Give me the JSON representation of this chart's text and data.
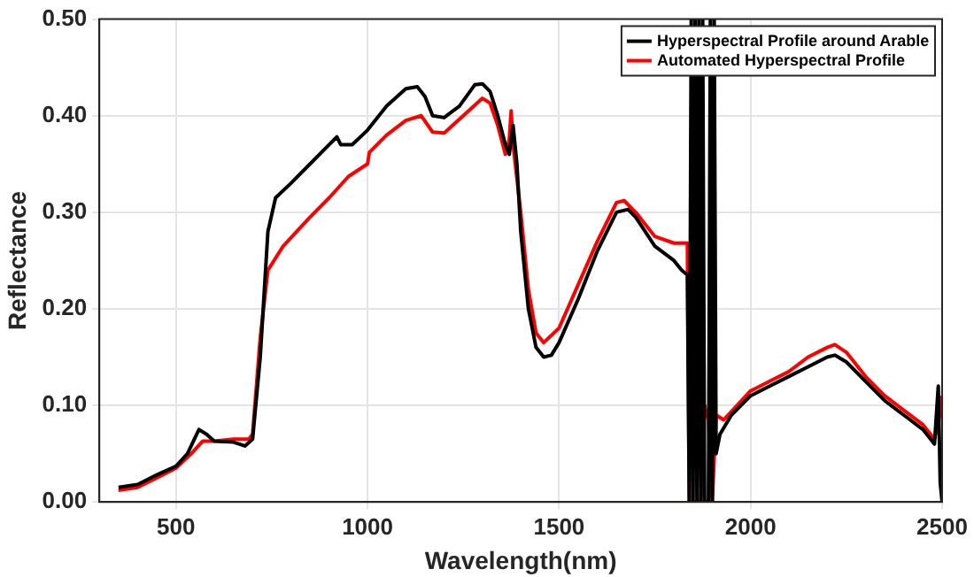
{
  "chart_data": {
    "type": "line",
    "xlabel": "Wavelength(nm)",
    "ylabel": "Reflectance",
    "xlim": [
      300,
      2500
    ],
    "xticks": [
      500,
      1000,
      1500,
      2000,
      2500
    ],
    "ylim": [
      0,
      0.5
    ],
    "yticks": [
      {
        "value": 0,
        "label": "0.00"
      },
      {
        "value": 0.1,
        "label": "0.10"
      },
      {
        "value": 0.2,
        "label": "0.20"
      },
      {
        "value": 0.3,
        "label": "0.30"
      },
      {
        "value": 0.4,
        "label": "0.40"
      },
      {
        "value": 0.5,
        "label": "0.50"
      }
    ],
    "grid": true,
    "legend": "top right",
    "marker": "none",
    "line_style": "solid",
    "series": [
      {
        "name": "Hyperspectral Profile around Arable",
        "color": "#000000",
        "x": [
          350,
          400,
          450,
          500,
          530,
          560,
          580,
          600,
          650,
          680,
          700,
          720,
          740,
          760,
          800,
          850,
          900,
          920,
          930,
          960,
          1000,
          1050,
          1100,
          1130,
          1150,
          1170,
          1200,
          1240,
          1280,
          1300,
          1320,
          1340,
          1360,
          1370,
          1380,
          1390,
          1400,
          1420,
          1440,
          1460,
          1480,
          1500,
          1550,
          1600,
          1650,
          1680,
          1700,
          1750,
          1800,
          1820,
          1835,
          1840,
          1845,
          1850,
          1855,
          1860,
          1865,
          1870,
          1875,
          1880,
          1890,
          1895,
          1900,
          1905,
          1910,
          1920,
          1950,
          2000,
          2050,
          2100,
          2150,
          2200,
          2220,
          2250,
          2300,
          2350,
          2400,
          2450,
          2480,
          2490,
          2495,
          2500
        ],
        "values": [
          0.015,
          0.018,
          0.028,
          0.037,
          0.05,
          0.075,
          0.07,
          0.063,
          0.062,
          0.058,
          0.065,
          0.15,
          0.28,
          0.315,
          0.33,
          0.35,
          0.37,
          0.378,
          0.37,
          0.37,
          0.385,
          0.41,
          0.428,
          0.43,
          0.42,
          0.4,
          0.398,
          0.41,
          0.432,
          0.433,
          0.425,
          0.4,
          0.37,
          0.36,
          0.39,
          0.35,
          0.28,
          0.2,
          0.16,
          0.15,
          0.152,
          0.165,
          0.21,
          0.26,
          0.3,
          0.303,
          0.295,
          0.265,
          0.25,
          0.24,
          0.235,
          0,
          0.5,
          0,
          0.5,
          0,
          0.5,
          0,
          0.5,
          0,
          0,
          0.5,
          0,
          0.5,
          0.05,
          0.07,
          0.09,
          0.11,
          0.12,
          0.13,
          0.14,
          0.15,
          0.152,
          0.145,
          0.125,
          0.105,
          0.09,
          0.075,
          0.06,
          0.12,
          0.02,
          0
        ]
      },
      {
        "name": "Automated Hyperspectral Profile",
        "color": "#ff0000",
        "x": [
          350,
          400,
          450,
          500,
          540,
          570,
          600,
          650,
          690,
          700,
          720,
          740,
          780,
          850,
          900,
          950,
          1000,
          1005,
          1050,
          1100,
          1140,
          1170,
          1200,
          1250,
          1300,
          1320,
          1340,
          1360,
          1370,
          1375,
          1380,
          1400,
          1420,
          1440,
          1460,
          1500,
          1550,
          1600,
          1650,
          1670,
          1700,
          1750,
          1800,
          1835,
          1840,
          1860,
          1870,
          1880,
          1890,
          1900,
          1910,
          1930,
          2000,
          2050,
          2100,
          2150,
          2200,
          2220,
          2250,
          2300,
          2350,
          2400,
          2450,
          2480,
          2490,
          2500
        ],
        "values": [
          0.012,
          0.015,
          0.025,
          0.035,
          0.05,
          0.063,
          0.063,
          0.065,
          0.065,
          0.07,
          0.17,
          0.24,
          0.265,
          0.295,
          0.315,
          0.337,
          0.35,
          0.362,
          0.38,
          0.395,
          0.4,
          0.383,
          0.382,
          0.4,
          0.418,
          0.413,
          0.39,
          0.36,
          0.375,
          0.405,
          0.37,
          0.3,
          0.22,
          0.175,
          0.165,
          0.18,
          0.225,
          0.27,
          0.31,
          0.312,
          0.3,
          0.275,
          0.268,
          0.268,
          0,
          0,
          0,
          0.1,
          0.085,
          0,
          0.09,
          0.085,
          0.115,
          0.125,
          0.135,
          0.15,
          0.16,
          0.163,
          0.155,
          0.13,
          0.11,
          0.095,
          0.08,
          0.065,
          0.08,
          0.11
        ]
      }
    ]
  }
}
